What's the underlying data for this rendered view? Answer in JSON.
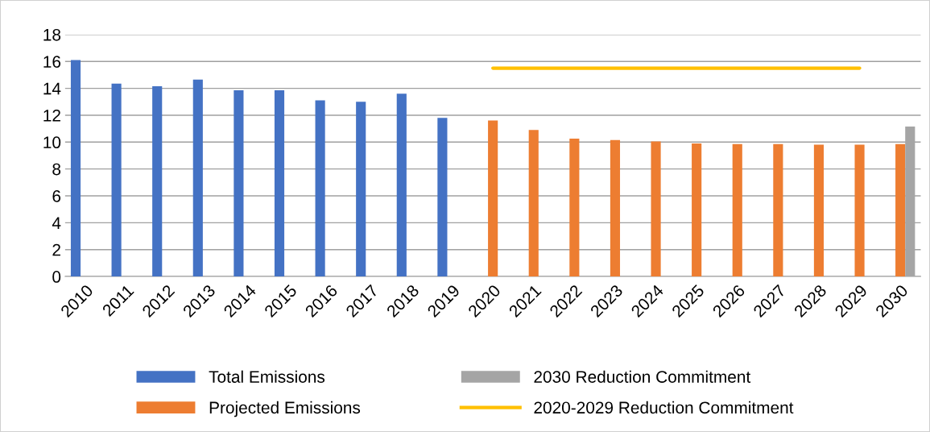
{
  "chart_data": {
    "type": "bar",
    "categories": [
      "2010",
      "2011",
      "2012",
      "2013",
      "2014",
      "2015",
      "2016",
      "2017",
      "2018",
      "2019",
      "2020",
      "2021",
      "2022",
      "2023",
      "2024",
      "2025",
      "2026",
      "2027",
      "2028",
      "2029",
      "2030"
    ],
    "series": [
      {
        "name": "Total Emissions",
        "color": "#4472c4",
        "values": [
          16.1,
          14.35,
          14.15,
          14.65,
          13.85,
          13.85,
          13.1,
          13.0,
          13.6,
          11.8,
          null,
          null,
          null,
          null,
          null,
          null,
          null,
          null,
          null,
          null,
          null
        ]
      },
      {
        "name": "Projected Emissions",
        "color": "#ed7d31",
        "values": [
          null,
          null,
          null,
          null,
          null,
          null,
          null,
          null,
          null,
          null,
          11.6,
          10.9,
          10.25,
          10.15,
          10.05,
          9.9,
          9.85,
          9.85,
          9.8,
          9.8,
          9.85
        ]
      },
      {
        "name": "2030 Reduction Commitment",
        "color": "#a5a5a5",
        "values": [
          null,
          null,
          null,
          null,
          null,
          null,
          null,
          null,
          null,
          null,
          null,
          null,
          null,
          null,
          null,
          null,
          null,
          null,
          null,
          null,
          11.15
        ]
      },
      {
        "name": "2020-2029 Reduction Commitment",
        "type": "line",
        "color": "#ffc000",
        "values": [
          null,
          null,
          null,
          null,
          null,
          null,
          null,
          null,
          null,
          null,
          15.5,
          15.5,
          15.5,
          15.5,
          15.5,
          15.5,
          15.5,
          15.5,
          15.5,
          15.5,
          null
        ]
      }
    ],
    "ylim": [
      0,
      18
    ],
    "yticks": [
      0,
      2,
      4,
      6,
      8,
      10,
      12,
      14,
      16,
      18
    ],
    "grid": "y",
    "legend": "bottom"
  }
}
